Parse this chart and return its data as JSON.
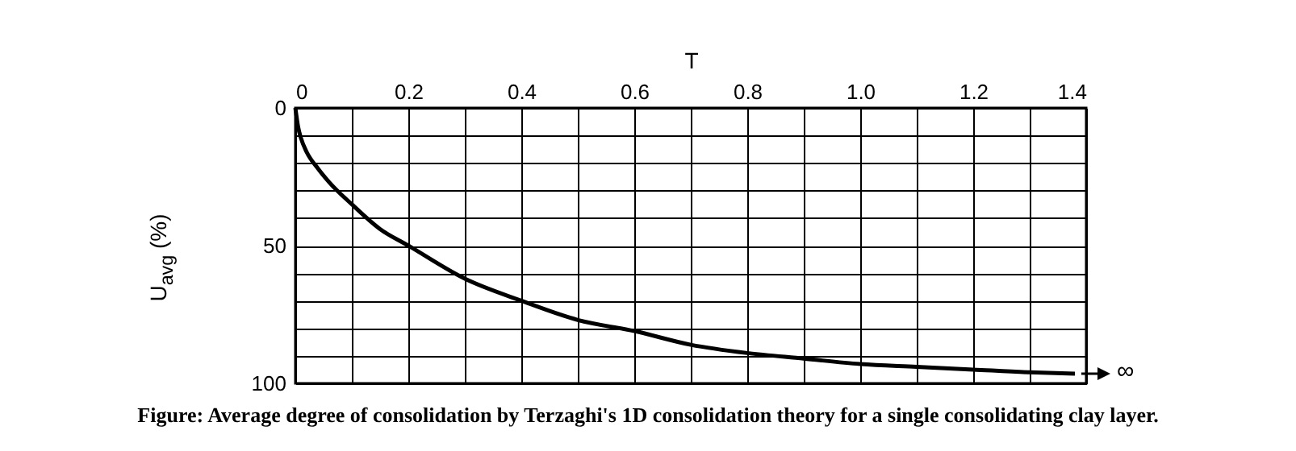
{
  "chart_data": {
    "type": "line",
    "xlabel": "T",
    "ylabel": "U$_{avg}$ (%)",
    "x": [
      0,
      0.005,
      0.01,
      0.02,
      0.04,
      0.06,
      0.1,
      0.15,
      0.2,
      0.3,
      0.4,
      0.5,
      0.6,
      0.7,
      0.8,
      0.9,
      1.0,
      1.1,
      1.2,
      1.3,
      1.38
    ],
    "series": [
      {
        "color": "#000000",
        "values": [
          0,
          7,
          11,
          16,
          22,
          27,
          35,
          44,
          50,
          62,
          70,
          77,
          81,
          86,
          89,
          91,
          93,
          94,
          95,
          96,
          96.5
        ]
      }
    ],
    "xlim": [
      0,
      1.4
    ],
    "ylim": [
      100,
      0
    ],
    "xticks": [
      0,
      {
        "value": 0.1,
        "label": null
      },
      0.2,
      {
        "value": 0.3,
        "label": null
      },
      0.4,
      {
        "value": 0.5,
        "label": null
      },
      0.6,
      {
        "value": 0.7,
        "label": null
      },
      0.8,
      {
        "value": 0.9,
        "label": null
      },
      {
        "value": 1.0,
        "label": "1.0"
      },
      {
        "value": 1.1,
        "label": null
      },
      1.2,
      {
        "value": 1.3,
        "label": null
      },
      1.4
    ],
    "yticks": [
      0,
      {
        "value": 10,
        "label": null
      },
      {
        "value": 20,
        "label": null
      },
      {
        "value": 30,
        "label": null
      },
      {
        "value": 40,
        "label": null
      },
      50,
      {
        "value": 60,
        "label": null
      },
      {
        "value": 70,
        "label": null
      },
      {
        "value": 80,
        "label": null
      },
      {
        "value": 90,
        "label": null
      },
      100
    ],
    "grid": true,
    "line_style": "solid",
    "annotations": [
      "∞",
      "Figure: Average degree of consolidation by Terzaghi's 1D consolidation theory for a single consolidating clay layer."
    ]
  }
}
